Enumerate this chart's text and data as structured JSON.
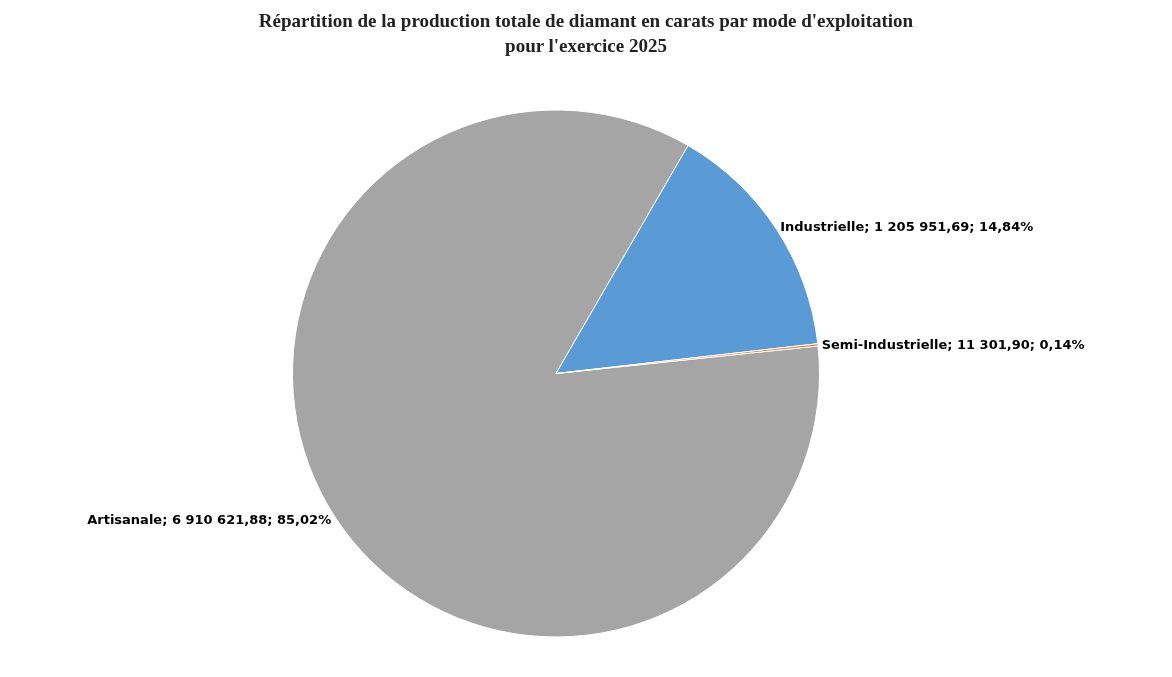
{
  "chart_data": {
    "type": "pie",
    "title": "Répartition de la production totale de diamant en carats par mode d'exploitation\npour l'exercice 2025",
    "categories": [
      "Artisanale",
      "Industrielle",
      "Semi-Industrielle"
    ],
    "values": [
      6910621.88,
      1205951.69,
      11301.9
    ],
    "value_labels": [
      "6 910 621,88; 85,02%",
      "1 205 951,69; 14,84%",
      "11 301,90; 0,14%"
    ],
    "colors": [
      "#a5a5a5",
      "#5b9bd5",
      "#ed7d31"
    ],
    "legend": false
  }
}
